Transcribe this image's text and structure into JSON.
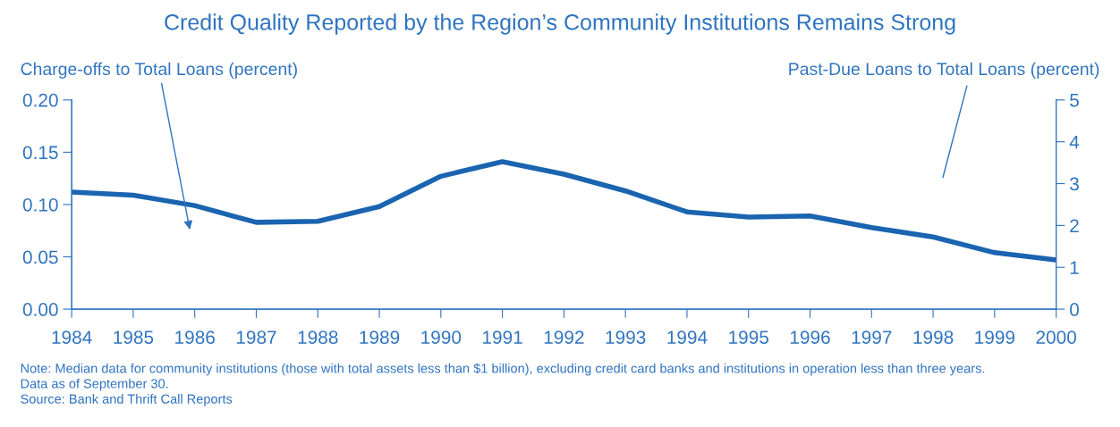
{
  "chart_data": {
    "type": "line",
    "title": "Credit Quality Reported by the Region’s Community Institutions Remains Strong",
    "ylabel": "Charge-offs to Total Loans (percent)",
    "y2label": "Past-Due Loans to Total Loans (percent)",
    "x": [
      1984,
      1985,
      1986,
      1987,
      1988,
      1989,
      1990,
      1991,
      1992,
      1993,
      1994,
      1995,
      1996,
      1997,
      1998,
      1999,
      2000
    ],
    "series": [
      {
        "color": "#1a64b0",
        "values": [
          0.112,
          0.109,
          0.099,
          0.083,
          0.084,
          0.098,
          0.127,
          0.141,
          0.129,
          0.113,
          0.093,
          0.088,
          0.089,
          0.078,
          0.069,
          0.054,
          0.047
        ]
      }
    ],
    "xlim": [
      1984,
      2000
    ],
    "xticks": [
      1984,
      1985,
      1986,
      1987,
      1988,
      1989,
      1990,
      1991,
      1992,
      1993,
      1994,
      1995,
      1996,
      1997,
      1998,
      1999,
      2000
    ],
    "ylim": [
      0,
      0.2
    ],
    "yticks": [
      {
        "value": 0,
        "label": "0.00"
      },
      {
        "value": 0.05,
        "label": "0.05"
      },
      {
        "value": 0.1,
        "label": "0.10"
      },
      {
        "value": 0.15,
        "label": "0.15"
      },
      {
        "value": 0.2,
        "label": "0.20"
      }
    ],
    "y2lim": [
      0,
      5
    ],
    "y2ticks": [
      0,
      1,
      2,
      3,
      4,
      5
    ],
    "grid": false,
    "legend": false,
    "marker": "none",
    "line_style": "solid",
    "annotations": [
      "Note: Median data for community institutions (those with total assets less than $1 billion), excluding credit card banks and institutions in operation less than three years.",
      "Data as of September 30.",
      "Source: Bank and Thrift Call Reports"
    ]
  }
}
